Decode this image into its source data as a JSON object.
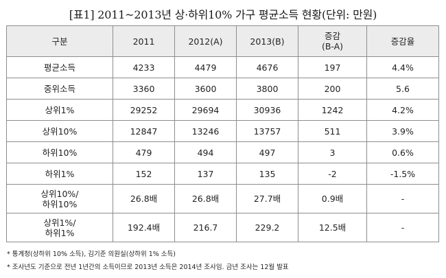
{
  "title": "[표1] 2011~2013년 상·하위10% 가구 평균소득 현황(단위: 만원)",
  "table": {
    "headers": [
      "구분",
      "2011",
      "2012(A)",
      "2013(B)",
      "증감\n(B-A)",
      "증감율"
    ],
    "rows": [
      [
        "평균소득",
        "4233",
        "4479",
        "4676",
        "197",
        "4.4%"
      ],
      [
        "중위소득",
        "3360",
        "3600",
        "3800",
        "200",
        "5.6"
      ],
      [
        "상위1%",
        "29252",
        "29694",
        "30936",
        "1242",
        "4.2%"
      ],
      [
        "상위10%",
        "12847",
        "13246",
        "13757",
        "511",
        "3.9%"
      ],
      [
        "하위10%",
        "479",
        "494",
        "497",
        "3",
        "0.6%"
      ],
      [
        "하위1%",
        "152",
        "137",
        "135",
        "-2",
        "-1.5%"
      ],
      [
        "상위10%/\n하위10%",
        "26.8배",
        "26.8배",
        "27.7배",
        "0.9배",
        "-"
      ],
      [
        "상위1%/\n하위1%",
        "192.4배",
        "216.7",
        "229.2",
        "12.5배",
        "-"
      ]
    ]
  },
  "footnotes": [
    "* 통계청(상하위 10% 소득), 김기준 의원실(상하위 1% 소득)",
    "* 조사년도 기준으로 전년 1년간의 소득이므로 2013년 소득은 2014년 조사임. 금년 조사는 12월 발표"
  ]
}
